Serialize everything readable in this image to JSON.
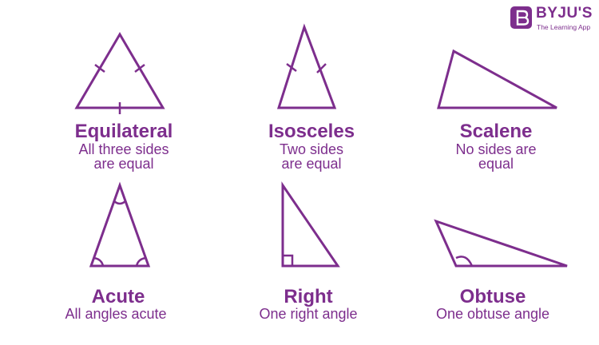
{
  "brand": {
    "name": "BYJU'S",
    "tagline": "The Learning App",
    "color": "#7d2e8d"
  },
  "triangles": [
    {
      "title": "Equilateral",
      "desc_lines": [
        "All three sides",
        "are equal"
      ]
    },
    {
      "title": "Isosceles",
      "desc_lines": [
        "Two sides",
        "are equal"
      ]
    },
    {
      "title": "Scalene",
      "desc_lines": [
        "No sides are",
        "equal"
      ]
    },
    {
      "title": "Acute",
      "desc_lines": [
        "All angles acute"
      ]
    },
    {
      "title": "Right",
      "desc_lines": [
        "One right angle"
      ]
    },
    {
      "title": "Obtuse",
      "desc_lines": [
        "One obtuse angle"
      ]
    }
  ]
}
